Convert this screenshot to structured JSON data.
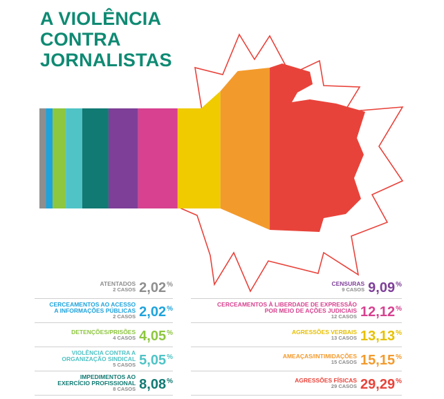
{
  "title_lines": [
    "A VIOLÊNCIA",
    "CONTRA",
    "JORNALISTAS"
  ],
  "colors": {
    "title": "#0f8a73",
    "star_outline": "#e8423a",
    "cases_text": "#8a8a8a",
    "divider": "#cfcfcf"
  },
  "chart_data": {
    "type": "bar",
    "title": "A VIOLÊNCIA CONTRA JORNALISTAS",
    "orientation": "horizontal-stacked",
    "unit": "%",
    "categories": [
      "ATENTADOS",
      "CERCEAMENTOS AO ACESSO A INFORMAÇÕES PÚBLICAS",
      "DETENÇÕES/PRISÕES",
      "VIOLÊNCIA CONTRA A ORGANIZAÇÃO SINDICAL",
      "IMPEDIMENTOS AO EXERCÍCIO PROFISSIONAL",
      "CENSURAS",
      "CERCEAMENTOS À LIBERDADE DE EXPRESSÃO POR MEIO DE AÇÕES JUDICIAIS",
      "AGRESSÕES VERBAIS",
      "AMEAÇAS/INTIMIDAÇÕES",
      "AGRESSÕES FÍSICAS"
    ],
    "items": [
      {
        "name_lines": [
          "ATENTADOS"
        ],
        "cases": "2 CASOS",
        "value": 2.02,
        "value_label": "2,02",
        "color": "#8e8e8e",
        "value_color": "#8e8e8e",
        "name_color": "#8e8e8e",
        "column": "left"
      },
      {
        "name_lines": [
          "CERCEAMENTOS AO ACESSO",
          "A INFORMAÇÕES PÚBLICAS"
        ],
        "cases": "2 CASOS",
        "value": 2.02,
        "value_label": "2,02",
        "color": "#1ea3dc",
        "value_color": "#1ea3dc",
        "name_color": "#1ea3dc",
        "column": "left"
      },
      {
        "name_lines": [
          "DETENÇÕES/PRISÕES"
        ],
        "cases": "4 CASOS",
        "value": 4.05,
        "value_label": "4,05",
        "color": "#8dc63f",
        "value_color": "#8dc63f",
        "name_color": "#8dc63f",
        "column": "left"
      },
      {
        "name_lines": [
          "VIOLÊNCIA CONTRA A",
          "ORGANIZAÇÃO SINDICAL"
        ],
        "cases": "5 CASOS",
        "value": 5.05,
        "value_label": "5,05",
        "color": "#4fc3c5",
        "value_color": "#4fc3c5",
        "name_color": "#4fc3c5",
        "column": "left"
      },
      {
        "name_lines": [
          "IMPEDIMENTOS AO",
          "EXERCÍCIO PROFISSIONAL"
        ],
        "cases": "8 CASOS",
        "value": 8.08,
        "value_label": "8,08",
        "color": "#117a73",
        "value_color": "#117a73",
        "name_color": "#117a73",
        "column": "left"
      },
      {
        "name_lines": [
          "CENSURAS"
        ],
        "cases": "9 CASOS",
        "value": 9.09,
        "value_label": "9,09",
        "color": "#7e3f98",
        "value_color": "#7e3f98",
        "name_color": "#7e3f98",
        "column": "right"
      },
      {
        "name_lines": [
          "CERCEAMENTOS À LIBERDADE DE EXPRESSÃO",
          "POR MEIO DE AÇÕES JUDICIAIS"
        ],
        "cases": "12 CASOS",
        "value": 12.12,
        "value_label": "12,12",
        "color": "#d7418f",
        "value_color": "#d7418f",
        "name_color": "#d7418f",
        "column": "right"
      },
      {
        "name_lines": [
          "AGRESSÕES VERBAIS"
        ],
        "cases": "13 CASOS",
        "value": 13.13,
        "value_label": "13,13",
        "color": "#f0cb00",
        "value_color": "#e6c000",
        "name_color": "#e6c000",
        "column": "right"
      },
      {
        "name_lines": [
          "AMEAÇAS/INTIMIDAÇÕES"
        ],
        "cases": "15 CASOS",
        "value": 15.15,
        "value_label": "15,15",
        "color": "#f39a2c",
        "value_color": "#f39a2c",
        "name_color": "#f39a2c",
        "column": "right"
      },
      {
        "name_lines": [
          "AGRESSÕES FÍSICAS"
        ],
        "cases": "29 CASOS",
        "value": 29.29,
        "value_label": "29,29",
        "color": "#e8433a",
        "value_color": "#e8433a",
        "name_color": "#e8433a",
        "column": "right"
      }
    ],
    "value_suffix": "%"
  }
}
